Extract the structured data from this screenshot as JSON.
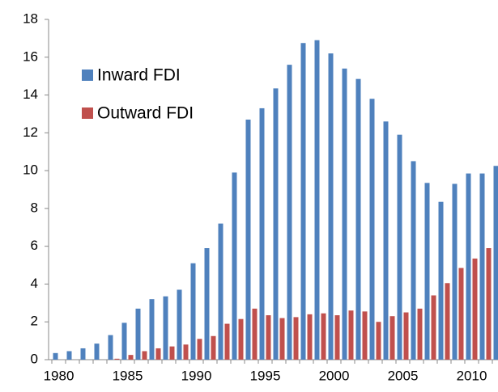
{
  "chart_data": {
    "type": "bar",
    "categories": [
      "1980",
      null,
      null,
      null,
      null,
      "1985",
      null,
      null,
      null,
      null,
      "1990",
      null,
      null,
      null,
      null,
      "1995",
      null,
      null,
      null,
      null,
      "2000",
      null,
      null,
      null,
      null,
      "2005",
      null,
      null,
      null,
      null,
      "2010",
      null,
      null
    ],
    "series": [
      {
        "name": "Inward FDI",
        "color": "#4f81bd",
        "values": [
          0.35,
          0.45,
          0.6,
          0.85,
          1.3,
          1.95,
          2.7,
          3.2,
          3.35,
          3.7,
          5.1,
          5.9,
          7.2,
          9.9,
          12.7,
          13.3,
          14.35,
          15.6,
          16.75,
          16.9,
          16.2,
          15.4,
          14.85,
          13.8,
          12.6,
          11.9,
          10.5,
          9.35,
          8.35,
          9.3,
          9.85,
          9.85,
          10.25
        ]
      },
      {
        "name": "Outward FDI",
        "color": "#c0504d",
        "values": [
          0,
          0,
          0,
          0,
          0.05,
          0.25,
          0.45,
          0.6,
          0.7,
          0.8,
          1.1,
          1.25,
          1.9,
          2.15,
          2.7,
          2.35,
          2.2,
          2.25,
          2.4,
          2.45,
          2.35,
          2.6,
          2.55,
          2.0,
          2.3,
          2.5,
          2.7,
          3.4,
          4.05,
          4.85,
          5.35,
          5.9,
          null
        ]
      }
    ],
    "ylim": [
      0,
      18
    ],
    "yticks": [
      0,
      2,
      4,
      6,
      8,
      10,
      12,
      14,
      16,
      18
    ],
    "grid": false,
    "legend": "upper left"
  }
}
